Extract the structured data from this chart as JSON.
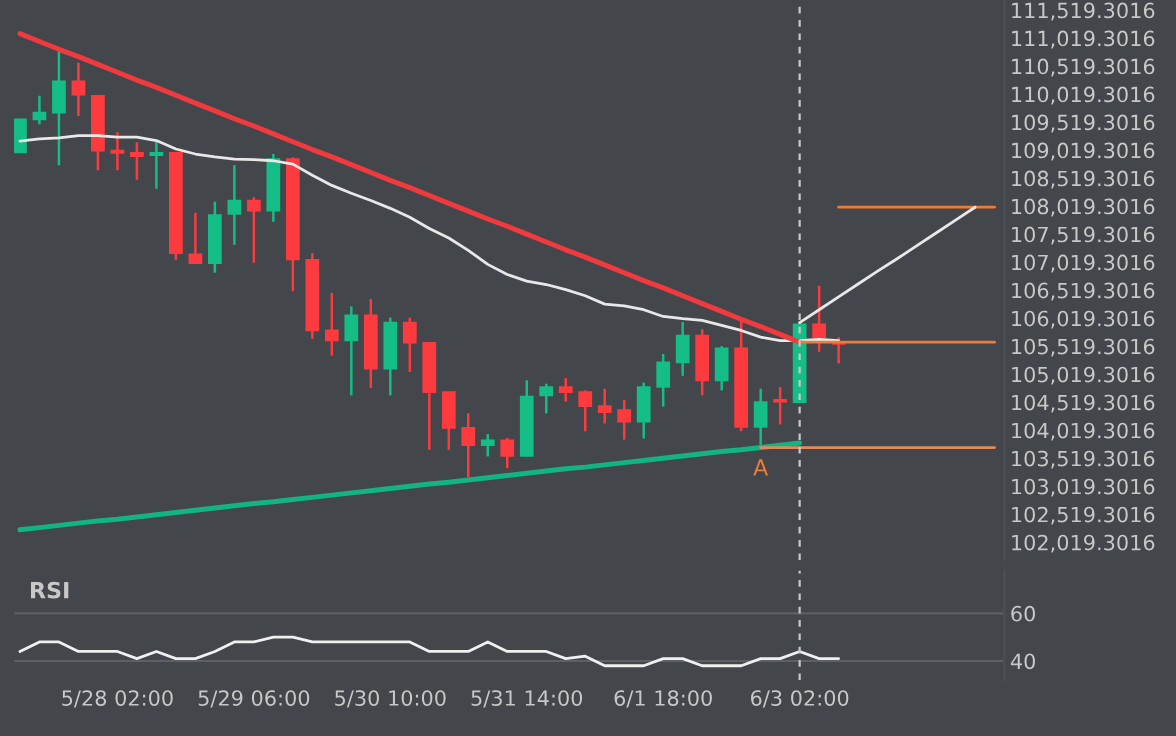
{
  "chart_data": [
    {
      "type": "candlestick",
      "categories": [
        null,
        null,
        null,
        null,
        null,
        "5/28 02:00",
        null,
        null,
        null,
        null,
        null,
        null,
        "5/29 06:00",
        null,
        null,
        null,
        null,
        null,
        null,
        "5/30 10:00",
        null,
        null,
        null,
        null,
        null,
        null,
        "5/31 14:00",
        null,
        null,
        null,
        null,
        null,
        null,
        "6/1 18:00",
        null,
        null,
        null,
        null,
        null,
        null,
        "6/3 02:00",
        null,
        null,
        null,
        null,
        null,
        null,
        null,
        null,
        null,
        null
      ],
      "ohlc": [
        [
          108980,
          109570,
          108980,
          109570
        ],
        [
          109570,
          109990,
          109480,
          109690
        ],
        [
          109690,
          110810,
          108750,
          110250
        ],
        [
          110250,
          110580,
          109630,
          110010
        ],
        [
          109990,
          109990,
          108660,
          109010
        ],
        [
          109010,
          109340,
          108660,
          108970
        ],
        [
          108970,
          109160,
          108490,
          108910
        ],
        [
          108930,
          109190,
          108330,
          108970
        ],
        [
          108970,
          108970,
          107060,
          107180
        ],
        [
          107160,
          107900,
          107000,
          107000
        ],
        [
          107000,
          108100,
          106830,
          107860
        ],
        [
          107880,
          108750,
          107330,
          108120
        ],
        [
          108120,
          108180,
          107010,
          107940
        ],
        [
          107940,
          108950,
          107740,
          108860
        ],
        [
          108860,
          108890,
          106500,
          107070
        ],
        [
          107060,
          107180,
          105650,
          105800
        ],
        [
          105800,
          106470,
          105350,
          105620
        ],
        [
          105620,
          106230,
          104640,
          106070
        ],
        [
          106070,
          106360,
          104770,
          105120
        ],
        [
          105120,
          106030,
          104640,
          105940
        ],
        [
          105940,
          106030,
          105060,
          105580
        ],
        [
          105580,
          105580,
          103670,
          104700
        ],
        [
          104700,
          104700,
          103670,
          104060
        ],
        [
          104060,
          104320,
          103180,
          103750
        ],
        [
          103750,
          103950,
          103550,
          103840
        ],
        [
          103840,
          103880,
          103340,
          103560
        ],
        [
          103560,
          104910,
          103550,
          104620
        ],
        [
          104640,
          104850,
          104320,
          104790
        ],
        [
          104790,
          104950,
          104530,
          104700
        ],
        [
          104700,
          104730,
          104000,
          104450
        ],
        [
          104450,
          104760,
          104140,
          104340
        ],
        [
          104380,
          104560,
          103850,
          104170
        ],
        [
          104170,
          104870,
          103870,
          104790
        ],
        [
          104790,
          105380,
          104440,
          105230
        ],
        [
          105230,
          105950,
          104990,
          105710
        ],
        [
          105710,
          105820,
          104640,
          104910
        ],
        [
          104910,
          105520,
          104730,
          105480
        ],
        [
          105480,
          106000,
          104000,
          104080
        ],
        [
          104080,
          104760,
          103720,
          104520
        ],
        [
          104560,
          104790,
          104120,
          104530
        ],
        [
          104520,
          105940,
          104500,
          105910
        ],
        [
          105910,
          106600,
          105420,
          105680
        ],
        [
          105590,
          105680,
          105210,
          105560
        ],
        null,
        null,
        null,
        null,
        null,
        null,
        null,
        null
      ],
      "colors": [
        "#15bd87",
        "#15bd87",
        "#15bd87",
        "#fd3b3f",
        "#fd3b3f",
        "#fd3b3f",
        "#fd3b3f",
        "#15bd87",
        "#fd3b3f",
        "#fd3b3f",
        "#15bd87",
        "#15bd87",
        "#fd3b3f",
        "#15bd87",
        "#fd3b3f",
        "#fd3b3f",
        "#fd3b3f",
        "#15bd87",
        "#fd3b3f",
        "#15bd87",
        "#fd3b3f",
        "#fd3b3f",
        "#fd3b3f",
        "#fd3b3f",
        "#15bd87",
        "#fd3b3f",
        "#15bd87",
        "#15bd87",
        "#fd3b3f",
        "#fd3b3f",
        "#fd3b3f",
        "#fd3b3f",
        "#15bd87",
        "#15bd87",
        "#15bd87",
        "#fd3b3f",
        "#15bd87",
        "#fd3b3f",
        "#15bd87",
        "#fd3b3f",
        "#15bd87",
        "#fd3b3f",
        "#fd3b3f",
        null,
        null,
        null,
        null,
        null,
        null,
        null,
        null
      ],
      "series": [
        {
          "type": "line",
          "color": "#e8e8e8",
          "values": [
            109180,
            109220,
            109240,
            109280,
            109280,
            109250,
            109250,
            109190,
            109040,
            108950,
            108900,
            108860,
            108850,
            108830,
            108770,
            108570,
            108390,
            108250,
            108120,
            107980,
            107820,
            107620,
            107450,
            107230,
            106980,
            106800,
            106680,
            106620,
            106530,
            106420,
            106270,
            106240,
            106170,
            106050,
            106010,
            105980,
            105890,
            105800,
            105680,
            105620,
            105620,
            105640,
            105620,
            null,
            null,
            null,
            null,
            null,
            null,
            null,
            null
          ]
        },
        {
          "type": "line",
          "color": "#f03a3d",
          "values": [
            111100,
            110960,
            110820,
            110690,
            110550,
            110410,
            110270,
            110140,
            110000,
            109860,
            109720,
            109580,
            109450,
            109310,
            109170,
            109030,
            108900,
            108760,
            108620,
            108480,
            108350,
            108210,
            108070,
            107930,
            107790,
            107660,
            107520,
            107380,
            107240,
            107110,
            106970,
            106830,
            106690,
            106560,
            106420,
            106280,
            106140,
            106000,
            105870,
            105730,
            105590,
            null,
            null,
            null,
            null,
            null,
            null,
            null,
            null,
            null,
            null
          ]
        },
        {
          "type": "line",
          "color": "#12b581",
          "values": [
            102240,
            102280,
            102320,
            102360,
            102400,
            102430,
            102470,
            102510,
            102550,
            102590,
            102630,
            102670,
            102710,
            102740,
            102780,
            102820,
            102860,
            102900,
            102940,
            102980,
            103020,
            103060,
            103090,
            103130,
            103170,
            103210,
            103250,
            103290,
            103330,
            103360,
            103400,
            103440,
            103480,
            103520,
            103560,
            103600,
            103640,
            103670,
            103710,
            103750,
            103790,
            null,
            null,
            null,
            null,
            null,
            null,
            null,
            null,
            null,
            null
          ]
        },
        {
          "type": "line",
          "color": "#f47a30",
          "values": [
            null,
            null,
            null,
            null,
            null,
            null,
            null,
            null,
            null,
            null,
            null,
            null,
            null,
            null,
            null,
            null,
            null,
            null,
            null,
            null,
            null,
            null,
            null,
            null,
            null,
            null,
            null,
            null,
            null,
            null,
            null,
            null,
            null,
            null,
            null,
            null,
            null,
            null,
            null,
            null,
            105590,
            105590,
            105590,
            105590,
            105590,
            105590,
            105590,
            105590,
            105590,
            105590,
            105590
          ]
        },
        {
          "type": "line",
          "color": "#f47a30",
          "values": [
            null,
            null,
            null,
            null,
            null,
            null,
            null,
            null,
            null,
            null,
            null,
            null,
            null,
            null,
            null,
            null,
            null,
            null,
            null,
            null,
            null,
            null,
            null,
            null,
            null,
            null,
            null,
            null,
            null,
            null,
            null,
            null,
            null,
            null,
            null,
            null,
            null,
            null,
            null,
            null,
            null,
            null,
            108000,
            108000,
            108000,
            108000,
            108000,
            108000,
            108000,
            108000,
            108000
          ]
        },
        {
          "type": "line",
          "color": "#e08a5c",
          "values": [
            null,
            null,
            null,
            null,
            null,
            null,
            null,
            null,
            null,
            null,
            null,
            null,
            null,
            null,
            null,
            null,
            null,
            null,
            null,
            null,
            null,
            null,
            null,
            null,
            null,
            null,
            null,
            null,
            null,
            null,
            null,
            null,
            null,
            null,
            null,
            null,
            null,
            null,
            103710,
            103710,
            103710,
            103710,
            103710,
            103710,
            103710,
            103710,
            103710,
            103710,
            103710,
            103710,
            103710
          ]
        },
        {
          "type": "line",
          "color": "#e8e8e8",
          "values": [
            null,
            null,
            null,
            null,
            null,
            null,
            null,
            null,
            null,
            null,
            null,
            null,
            null,
            null,
            null,
            null,
            null,
            null,
            null,
            null,
            null,
            null,
            null,
            null,
            null,
            null,
            null,
            null,
            null,
            null,
            null,
            null,
            null,
            null,
            null,
            null,
            null,
            null,
            null,
            null,
            105940,
            106170,
            106400,
            106630,
            106860,
            107080,
            107310,
            107540,
            107770,
            108000,
            null
          ]
        }
      ],
      "ylim": [
        101700,
        111700
      ],
      "yticks": [
        {
          "value": 102019.3016,
          "label": "102,019.3016"
        },
        {
          "value": 102519.3016,
          "label": "102,519.3016"
        },
        {
          "value": 103019.3016,
          "label": "103,019.3016"
        },
        {
          "value": 103519.3016,
          "label": "103,519.3016"
        },
        {
          "value": 104019.3016,
          "label": "104,019.3016"
        },
        {
          "value": 104519.3016,
          "label": "104,519.3016"
        },
        {
          "value": 105019.3016,
          "label": "105,019.3016"
        },
        {
          "value": 105519.3016,
          "label": "105,519.3016"
        },
        {
          "value": 106019.3016,
          "label": "106,019.3016"
        },
        {
          "value": 106519.3016,
          "label": "106,519.3016"
        },
        {
          "value": 107019.3016,
          "label": "107,019.3016"
        },
        {
          "value": 107519.3016,
          "label": "107,519.3016"
        },
        {
          "value": 108019.3016,
          "label": "108,019.3016"
        },
        {
          "value": 108519.3016,
          "label": "108,519.3016"
        },
        {
          "value": 109019.3016,
          "label": "109,019.3016"
        },
        {
          "value": 109519.3016,
          "label": "109,519.3016"
        },
        {
          "value": 110019.3016,
          "label": "110,019.3016"
        },
        {
          "value": 110519.3016,
          "label": "110,519.3016"
        },
        {
          "value": 111019.3016,
          "label": "111,019.3016"
        },
        {
          "value": 111519.3016,
          "label": "111,519.3016"
        }
      ],
      "tick_labels": "y",
      "ref_lines": [
        {
          "axis": "x",
          "value": "6/3 02:00",
          "color": "#c8c8c8",
          "line_style": "dashed"
        }
      ],
      "annotations": [
        "A"
      ]
    },
    {
      "type": "line",
      "title": "RSI",
      "categories": [
        null,
        null,
        null,
        null,
        null,
        "5/28 02:00",
        null,
        null,
        null,
        null,
        null,
        null,
        "5/29 06:00",
        null,
        null,
        null,
        null,
        null,
        null,
        "5/30 10:00",
        null,
        null,
        null,
        null,
        null,
        null,
        "5/31 14:00",
        null,
        null,
        null,
        null,
        null,
        null,
        "6/1 18:00",
        null,
        null,
        null,
        null,
        null,
        null,
        "6/3 02:00",
        null,
        null,
        null,
        null,
        null,
        null,
        null,
        null,
        null,
        null
      ],
      "series": [
        {
          "color": "#f0f0f0",
          "values": [
            44,
            48,
            48,
            44,
            44,
            44,
            41,
            44,
            41,
            41,
            44,
            48,
            48,
            50,
            50,
            48,
            48,
            48,
            48,
            48,
            48,
            44,
            44,
            44,
            48,
            44,
            44,
            44,
            41,
            42,
            38,
            38,
            38,
            41,
            41,
            38,
            38,
            38,
            41,
            41,
            44,
            41,
            41,
            null,
            null,
            null,
            null,
            null,
            null,
            null,
            null
          ]
        }
      ],
      "ylim": [
        32,
        78
      ],
      "yticks": [
        40,
        60
      ],
      "grid": "y",
      "ref_lines": [
        {
          "axis": "x",
          "value": "6/3 02:00",
          "color": "#c8c8c8",
          "line_style": "dashed"
        }
      ]
    }
  ]
}
